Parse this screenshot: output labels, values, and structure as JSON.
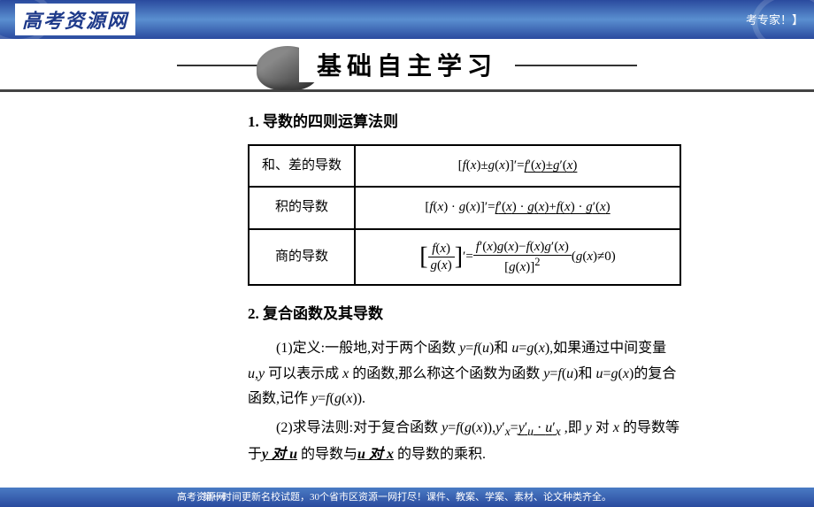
{
  "header": {
    "logo": "高考资源网",
    "tagline": "考专家！】"
  },
  "banner": {
    "title": "基础自主学习"
  },
  "section1": {
    "title": "1. 导数的四则运算法则",
    "rows": [
      {
        "label": "和、差的导数"
      },
      {
        "label": "积的导数"
      },
      {
        "label": "商的导数"
      }
    ]
  },
  "section2": {
    "title": "2. 复合函数及其导数"
  },
  "footer": {
    "logo": "高考资源网",
    "text": "第一时间更新名校试题，30个省市区资源一网打尽！课件、教案、学案、素材、论文种类齐全。"
  },
  "colors": {
    "brand_blue": "#2a4a9e",
    "text": "#000000"
  }
}
